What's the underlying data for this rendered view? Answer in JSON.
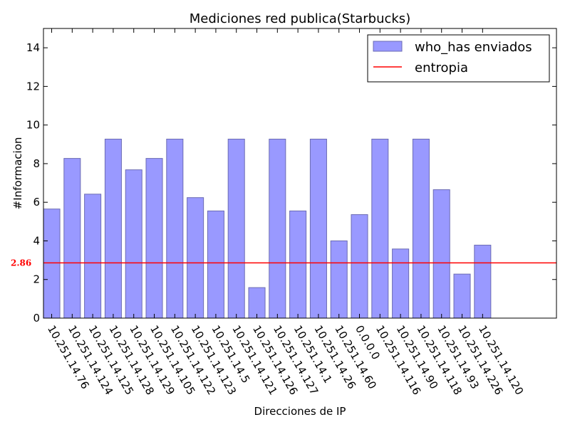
{
  "chart_data": {
    "type": "bar",
    "title": "Mediciones red publica(Starbucks)",
    "xlabel": "Direcciones de IP",
    "ylabel": "#Informacion",
    "ylim": [
      0,
      15
    ],
    "yticks": [
      0,
      2,
      4,
      6,
      8,
      10,
      12,
      14
    ],
    "categories": [
      "10.251.14.76",
      "10.251.14.124",
      "10.251.14.125",
      "10.251.14.128",
      "10.251.14.129",
      "10.251.14.105",
      "10.251.14.122",
      "10.251.14.123",
      "10.251.14.5",
      "10.251.14.121",
      "10.251.14.126",
      "10.251.14.127",
      "10.251.14.1",
      "10.251.14.26",
      "10.251.14.60",
      "0.0.0.0",
      "10.251.14.116",
      "10.251.14.90",
      "10.251.14.118",
      "10.251.14.93",
      "10.251.14.226",
      "10.251.14.120"
    ],
    "series": [
      {
        "name": "who_has enviados",
        "color": "#9999ff",
        "values": [
          5.65,
          8.27,
          6.42,
          9.27,
          7.68,
          8.27,
          9.27,
          6.24,
          5.55,
          9.27,
          1.58,
          9.27,
          5.55,
          9.27,
          4.0,
          5.36,
          9.27,
          3.58,
          9.27,
          6.65,
          2.28,
          3.78
        ]
      }
    ],
    "hline": {
      "name": "entropia",
      "value": 2.86,
      "label": "2.86",
      "color": "#ff0000"
    },
    "legend": {
      "placement": "top-right",
      "entries": [
        "who_has enviados",
        "entropia"
      ]
    },
    "grid": false
  }
}
